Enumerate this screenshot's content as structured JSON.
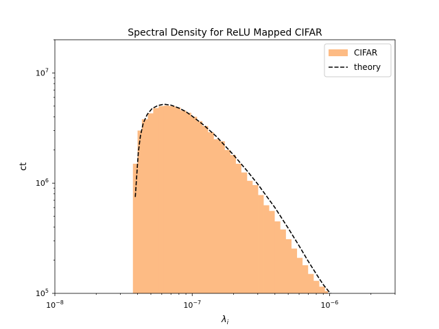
{
  "chart_data": {
    "type": "histogram",
    "title": "Spectral Density for ReLU Mapped CIFAR",
    "xlabel_base": "λ",
    "xlabel_sub": "i",
    "ylabel": "ct",
    "x_scale": "log",
    "y_scale": "log",
    "xlim": [
      1e-08,
      3e-06
    ],
    "ylim": [
      100000,
      20000000
    ],
    "grid": false,
    "legend_position": "top-right",
    "x_ticks": [
      {
        "value": 1e-08,
        "base": "10",
        "exp": "−8"
      },
      {
        "value": 1e-07,
        "base": "10",
        "exp": "−7"
      },
      {
        "value": 1e-06,
        "base": "10",
        "exp": "−6"
      }
    ],
    "y_ticks": [
      {
        "value": 100000,
        "base": "10",
        "exp": "5"
      },
      {
        "value": 1000000,
        "base": "10",
        "exp": "6"
      },
      {
        "value": 10000000,
        "base": "10",
        "exp": "7"
      }
    ],
    "series": [
      {
        "name": "CIFAR",
        "kind": "bars",
        "color": "#fdbb84",
        "bins": [
          {
            "x0": 3.7e-08,
            "x1": 4e-08,
            "y": 1500000
          },
          {
            "x0": 4e-08,
            "x1": 4.3e-08,
            "y": 3000000
          },
          {
            "x0": 4.3e-08,
            "x1": 4.75e-08,
            "y": 3800000
          },
          {
            "x0": 4.75e-08,
            "x1": 5.2e-08,
            "y": 4300000
          },
          {
            "x0": 5.2e-08,
            "x1": 5.7e-08,
            "y": 4800000
          },
          {
            "x0": 5.7e-08,
            "x1": 6.2e-08,
            "y": 5000000
          },
          {
            "x0": 6.2e-08,
            "x1": 6.8e-08,
            "y": 5050000
          },
          {
            "x0": 6.8e-08,
            "x1": 7.5e-08,
            "y": 5000000
          },
          {
            "x0": 7.5e-08,
            "x1": 8.2e-08,
            "y": 4850000
          },
          {
            "x0": 8.2e-08,
            "x1": 9e-08,
            "y": 4550000
          },
          {
            "x0": 9e-08,
            "x1": 9.8e-08,
            "y": 4350000
          },
          {
            "x0": 9.8e-08,
            "x1": 1.08e-07,
            "y": 4000000
          },
          {
            "x0": 1.08e-07,
            "x1": 1.18e-07,
            "y": 3650000
          },
          {
            "x0": 1.18e-07,
            "x1": 1.3e-07,
            "y": 3300000
          },
          {
            "x0": 1.3e-07,
            "x1": 1.43e-07,
            "y": 2900000
          },
          {
            "x0": 1.43e-07,
            "x1": 1.57e-07,
            "y": 2500000
          },
          {
            "x0": 1.57e-07,
            "x1": 1.72e-07,
            "y": 2400000
          },
          {
            "x0": 1.72e-07,
            "x1": 1.89e-07,
            "y": 2000000
          },
          {
            "x0": 1.89e-07,
            "x1": 2.07e-07,
            "y": 1800000
          },
          {
            "x0": 2.07e-07,
            "x1": 2.27e-07,
            "y": 1500000
          },
          {
            "x0": 2.27e-07,
            "x1": 2.5e-07,
            "y": 1250000
          },
          {
            "x0": 2.5e-07,
            "x1": 2.74e-07,
            "y": 1050000
          },
          {
            "x0": 2.74e-07,
            "x1": 3.01e-07,
            "y": 960000
          },
          {
            "x0": 3.01e-07,
            "x1": 3.3e-07,
            "y": 780000
          },
          {
            "x0": 3.3e-07,
            "x1": 3.62e-07,
            "y": 630000
          },
          {
            "x0": 3.62e-07,
            "x1": 3.97e-07,
            "y": 560000
          },
          {
            "x0": 3.97e-07,
            "x1": 4.36e-07,
            "y": 450000
          },
          {
            "x0": 4.36e-07,
            "x1": 4.79e-07,
            "y": 380000
          },
          {
            "x0": 4.79e-07,
            "x1": 5.26e-07,
            "y": 310000
          },
          {
            "x0": 5.26e-07,
            "x1": 5.77e-07,
            "y": 255000
          },
          {
            "x0": 5.77e-07,
            "x1": 6.33e-07,
            "y": 210000
          },
          {
            "x0": 6.33e-07,
            "x1": 6.95e-07,
            "y": 180000
          },
          {
            "x0": 6.95e-07,
            "x1": 7.63e-07,
            "y": 150000
          },
          {
            "x0": 7.63e-07,
            "x1": 8.38e-07,
            "y": 130000
          },
          {
            "x0": 8.38e-07,
            "x1": 9.2e-07,
            "y": 115000
          },
          {
            "x0": 9.2e-07,
            "x1": 9.7e-07,
            "y": 105000
          }
        ]
      },
      {
        "name": "theory",
        "kind": "line",
        "color": "#000000",
        "dash": "dashed",
        "points": [
          {
            "x": 3.85e-08,
            "y": 750000
          },
          {
            "x": 3.95e-08,
            "y": 1200000
          },
          {
            "x": 4.05e-08,
            "y": 1900000
          },
          {
            "x": 4.2e-08,
            "y": 2700000
          },
          {
            "x": 4.4e-08,
            "y": 3500000
          },
          {
            "x": 4.7e-08,
            "y": 4200000
          },
          {
            "x": 5.1e-08,
            "y": 4750000
          },
          {
            "x": 5.6e-08,
            "y": 5050000
          },
          {
            "x": 6.2e-08,
            "y": 5200000
          },
          {
            "x": 7e-08,
            "y": 5100000
          },
          {
            "x": 8e-08,
            "y": 4800000
          },
          {
            "x": 9e-08,
            "y": 4450000
          },
          {
            "x": 1e-07,
            "y": 4050000
          },
          {
            "x": 1.2e-07,
            "y": 3400000
          },
          {
            "x": 1.5e-07,
            "y": 2650000
          },
          {
            "x": 2e-07,
            "y": 1800000
          },
          {
            "x": 2.5e-07,
            "y": 1300000
          },
          {
            "x": 3e-07,
            "y": 980000
          },
          {
            "x": 4e-07,
            "y": 600000
          },
          {
            "x": 5e-07,
            "y": 390000
          },
          {
            "x": 6e-07,
            "y": 270000
          },
          {
            "x": 7e-07,
            "y": 195000
          },
          {
            "x": 8e-07,
            "y": 150000
          },
          {
            "x": 9e-07,
            "y": 120000
          },
          {
            "x": 1e-06,
            "y": 102000
          },
          {
            "x": 1.02e-06,
            "y": 98000
          }
        ]
      }
    ]
  }
}
